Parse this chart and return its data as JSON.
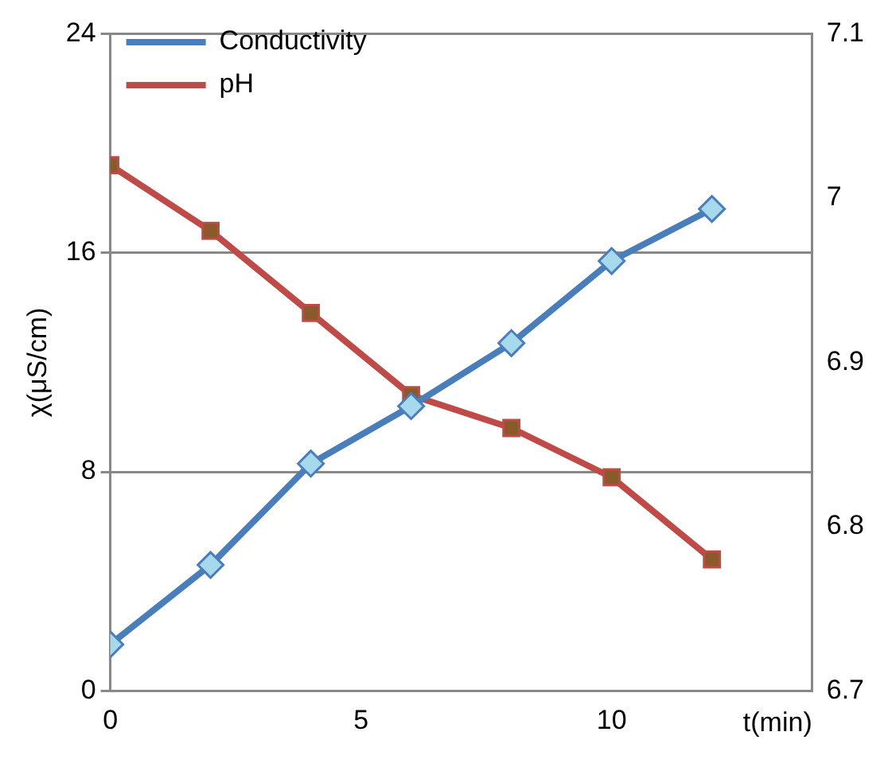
{
  "chart_data": {
    "type": "line",
    "xlabel": "t(min)",
    "ylabel": "χ(μS/cm)",
    "x": [
      0,
      2,
      4,
      6,
      8,
      10,
      12
    ],
    "series": [
      {
        "name": "Conductivity",
        "color": "#4a7ebb",
        "marker": "diamond",
        "values": [
          1.7,
          4.6,
          8.3,
          10.4,
          12.7,
          15.7,
          17.6
        ]
      },
      {
        "name": "pH",
        "color": "#be4b48",
        "marker": "square",
        "axis": "y2",
        "values": [
          7.02,
          6.98,
          6.93,
          6.88,
          6.86,
          6.83,
          6.78
        ]
      }
    ],
    "xlim": [
      0,
      14
    ],
    "xticks": [
      0,
      5,
      10
    ],
    "ylim": [
      0,
      24
    ],
    "yticks": [
      0,
      8,
      16,
      24
    ],
    "y2lim": [
      6.7,
      7.1
    ],
    "y2ticks": [
      6.7,
      6.8,
      6.9,
      7,
      7.1
    ],
    "grid": "y",
    "legend": "top left"
  }
}
